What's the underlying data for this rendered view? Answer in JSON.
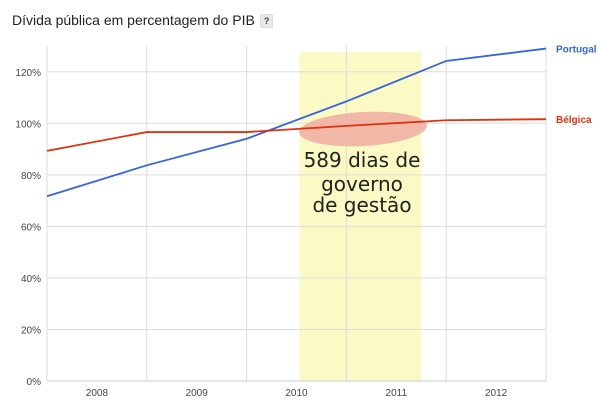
{
  "chart_data": {
    "type": "line",
    "title": "Dívida pública em percentagem do PIB",
    "help_label": "?",
    "x_tick_labels": [
      "2008",
      "2009",
      "2010",
      "2011",
      "2012"
    ],
    "x": [
      2008.0,
      2009.0,
      2010.0,
      2011.0,
      2012.0,
      2013.0
    ],
    "xlim": [
      2008.0,
      2013.0
    ],
    "ylim": [
      0,
      130
    ],
    "y_ticks": [
      0,
      20,
      40,
      60,
      80,
      100,
      120
    ],
    "y_tick_labels": [
      "0%",
      "20%",
      "40%",
      "60%",
      "80%",
      "100%",
      "120%"
    ],
    "grid": true,
    "series": [
      {
        "name": "Portugal",
        "color": "#3366dd",
        "values": [
          71.7,
          83.7,
          94.0,
          108.5,
          124.2,
          129.0
        ]
      },
      {
        "name": "Bélgica",
        "color": "#dd3311",
        "values": [
          89.3,
          96.6,
          96.6,
          99.0,
          101.2,
          101.6
        ]
      }
    ],
    "highlight": {
      "x_range": [
        2010.53,
        2011.75
      ],
      "color": "#fbf9c4"
    },
    "annotation": {
      "lines": [
        "589 dias de",
        "governo",
        "de gestão"
      ],
      "ellipse_color": "#f0a8a0"
    },
    "legend": "right, end of lines"
  }
}
